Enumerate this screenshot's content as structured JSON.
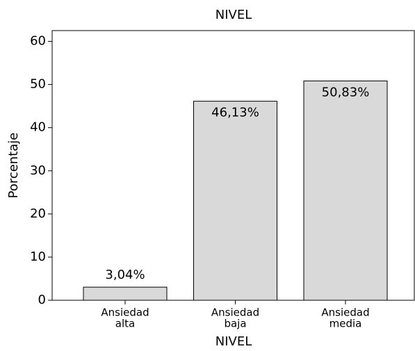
{
  "chart_data": {
    "type": "bar",
    "title": "NIVEL",
    "x_label": "NIVEL",
    "y_label": "Porcentaje",
    "categories": [
      [
        "Ansiedad",
        "alta"
      ],
      [
        "Ansiedad",
        "baja"
      ],
      [
        "Ansiedad",
        "media"
      ]
    ],
    "values": [
      3.04,
      46.13,
      50.83
    ],
    "value_labels": [
      "3,04%",
      "46,13%",
      "50,83%"
    ],
    "color": "#d9d9d9",
    "ylim": [
      0,
      62.5
    ],
    "yticks": [
      0,
      10,
      20,
      30,
      40,
      50,
      60
    ],
    "grid": false
  }
}
